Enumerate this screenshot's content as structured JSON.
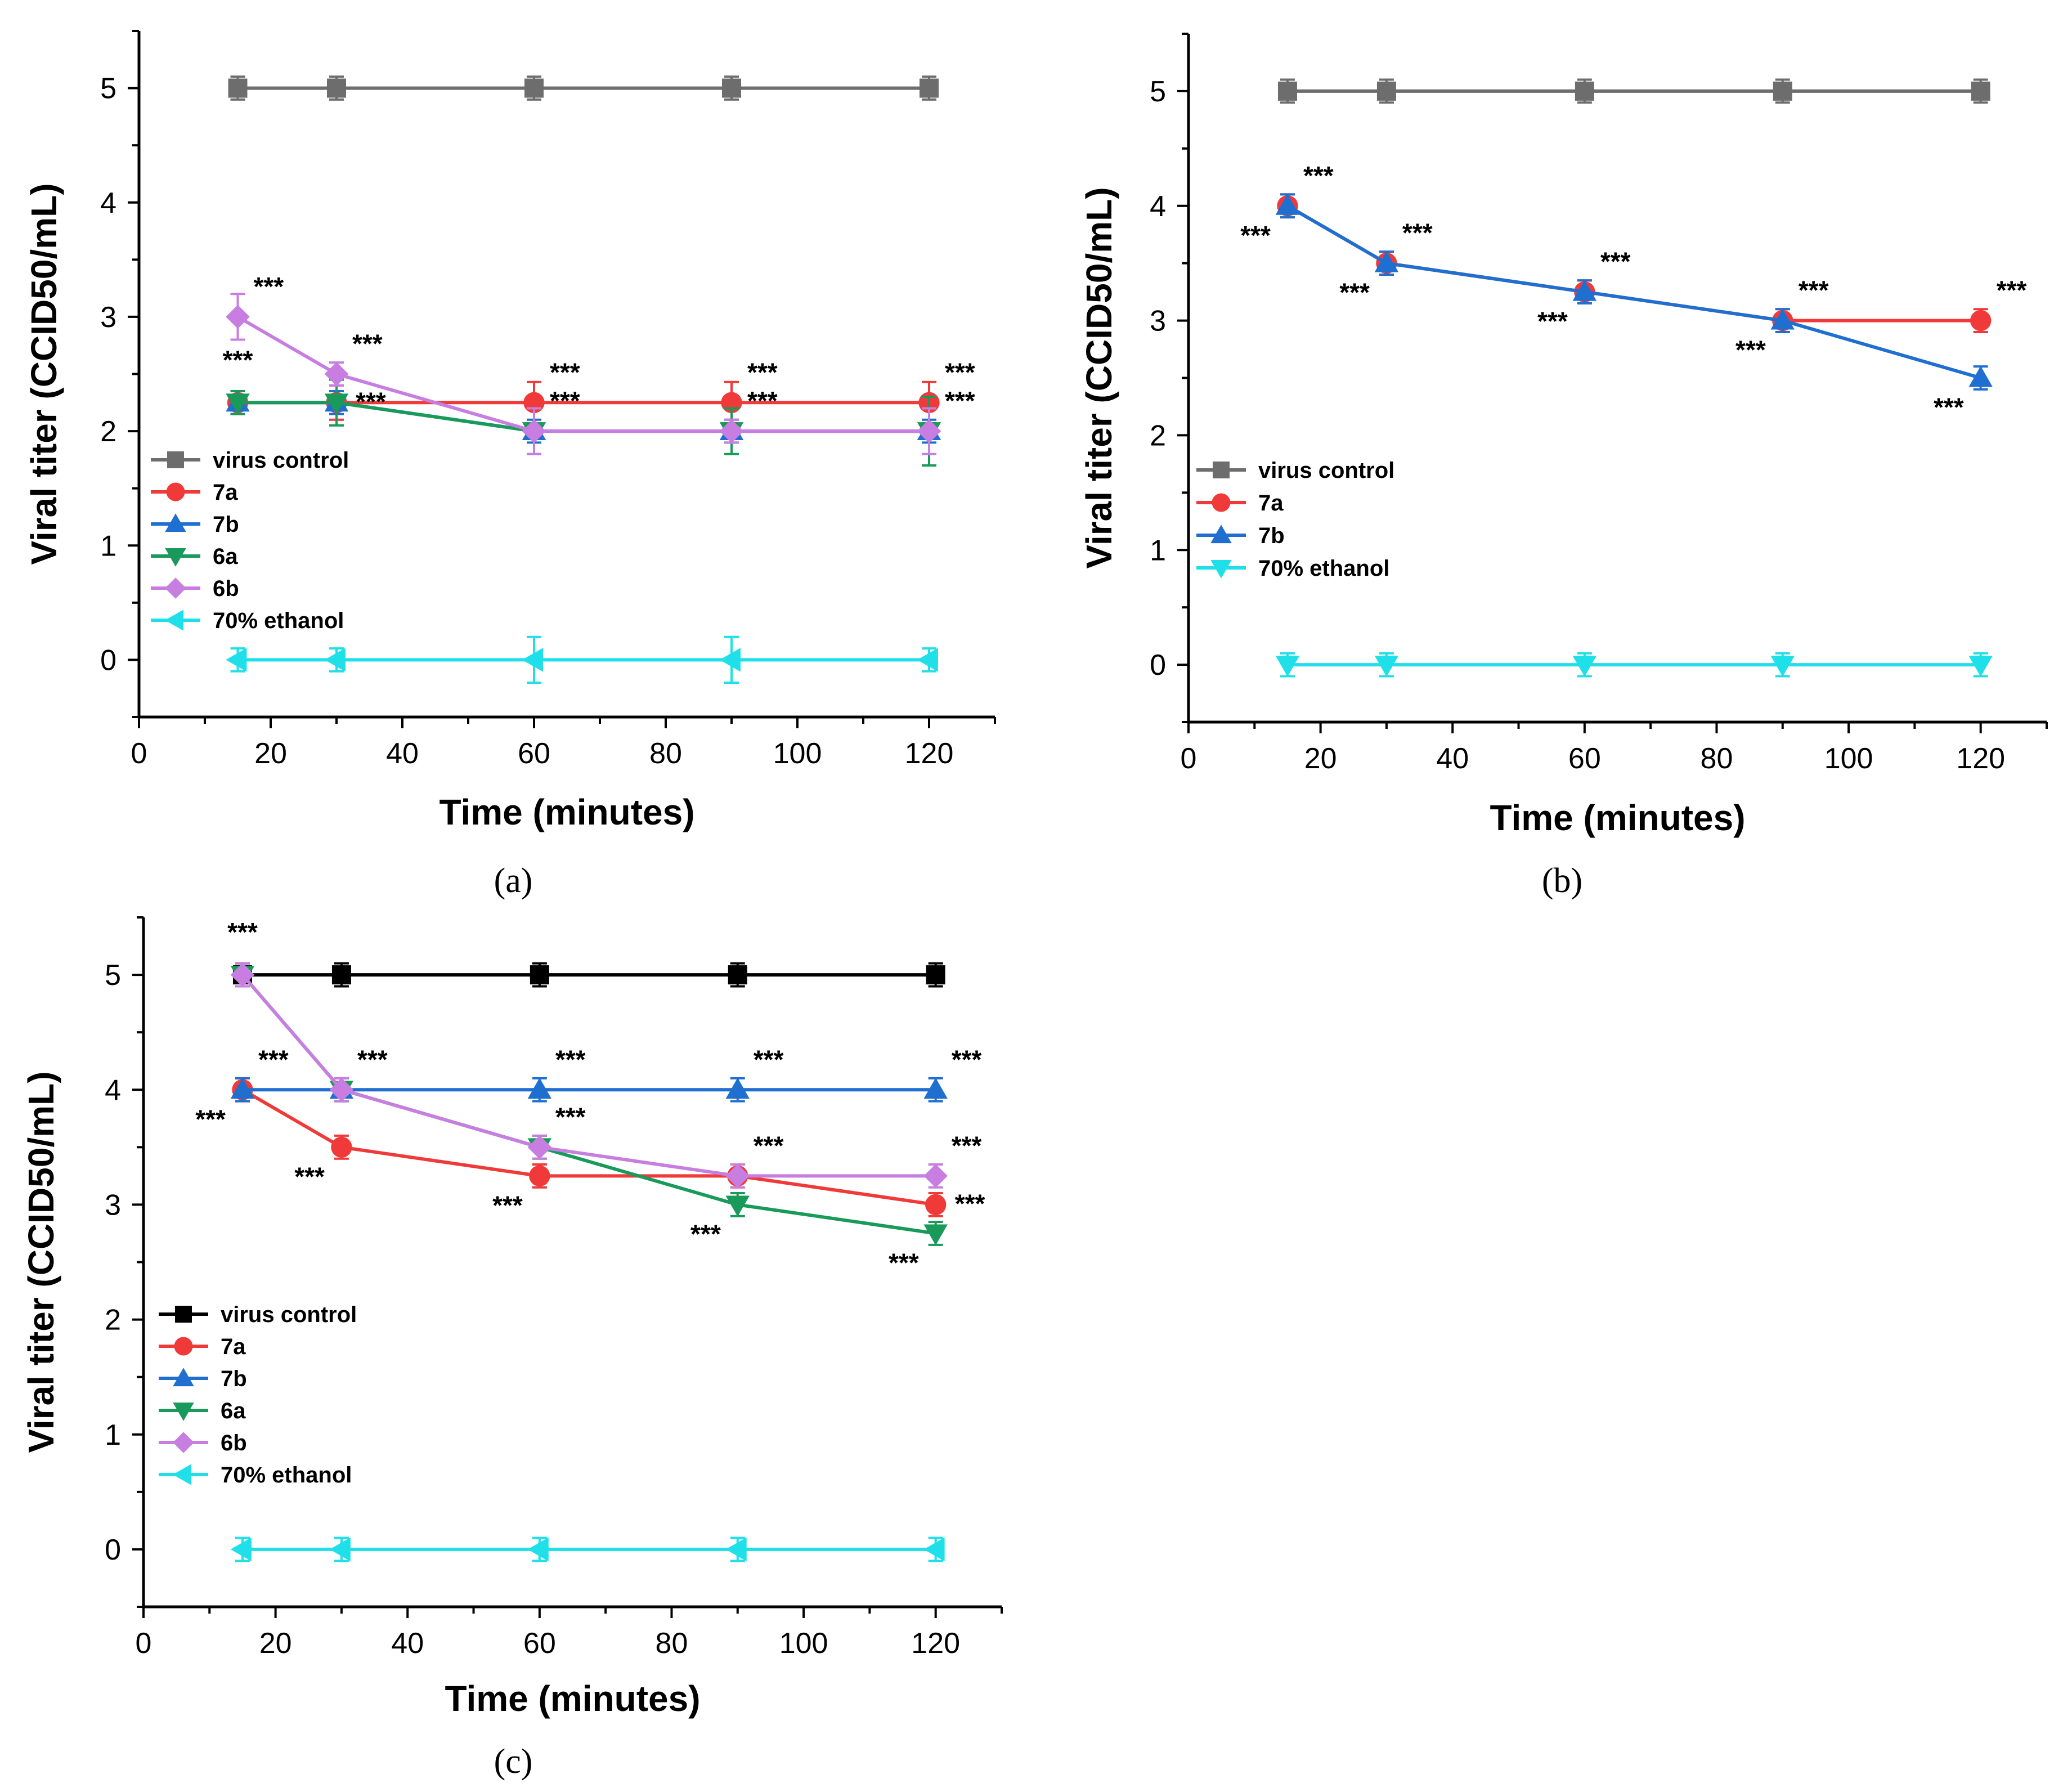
{
  "chart_data": [
    {
      "type": "line",
      "panel": "a",
      "caption": "(a)",
      "xlabel": "Time (minutes)",
      "ylabel": "Viral titer (CCID50/mL)",
      "xlim": [
        0,
        130
      ],
      "ylim": [
        -0.5,
        5.5
      ],
      "xticks": [
        "0",
        "20",
        "40",
        "60",
        "80",
        "100",
        "120"
      ],
      "yticks": [
        "0",
        "1",
        "2",
        "3",
        "4",
        "5"
      ],
      "x": [
        15,
        30,
        60,
        90,
        120
      ],
      "series": [
        {
          "name": "virus control",
          "values": [
            5,
            5,
            5,
            5,
            5
          ],
          "errors": [
            0.1,
            0.1,
            0.1,
            0.1,
            0.1
          ],
          "color": "#6d6d6d",
          "marker": "square"
        },
        {
          "name": "7a",
          "values": [
            2.25,
            2.25,
            2.25,
            2.25,
            2.25
          ],
          "errors": [
            0.1,
            0.15,
            0.18,
            0.18,
            0.18
          ],
          "color": "#f03a3a",
          "marker": "circle"
        },
        {
          "name": "7b",
          "values": [
            2.25,
            2.25,
            2.0,
            2.0,
            2.0
          ],
          "errors": [
            0.1,
            0.1,
            0.1,
            0.1,
            0.1
          ],
          "color": "#1f6fd1",
          "marker": "triangle-up"
        },
        {
          "name": "6a",
          "values": [
            2.25,
            2.25,
            2.0,
            2.0,
            2.0
          ],
          "errors": [
            0.1,
            0.2,
            0.2,
            0.2,
            0.3
          ],
          "color": "#1a9a5a",
          "marker": "triangle-down"
        },
        {
          "name": "6b",
          "values": [
            3.0,
            2.5,
            2.0,
            2.0,
            2.0
          ],
          "errors": [
            0.2,
            0.1,
            0.2,
            0.1,
            0.2
          ],
          "color": "#c77ee0",
          "marker": "diamond"
        },
        {
          "name": "70% ethanol",
          "values": [
            0,
            0,
            0,
            0,
            0
          ],
          "errors": [
            0.1,
            0.1,
            0.2,
            0.2,
            0.1
          ],
          "color": "#1fe0e8",
          "marker": "triangle-left"
        }
      ],
      "annotations": [
        {
          "text": "***",
          "x": 15,
          "y": 2.25,
          "pos": "above"
        },
        {
          "text": "***",
          "x": 15,
          "y": 3.0,
          "pos": "above-right"
        },
        {
          "text": "***",
          "x": 30,
          "y": 2.5,
          "pos": "above-right"
        },
        {
          "text": "***",
          "x": 30,
          "y": 2.25,
          "pos": "right"
        },
        {
          "text": "***",
          "x": 60,
          "y": 2.25,
          "pos": "above-right"
        },
        {
          "text": "***",
          "x": 60,
          "y": 2.0,
          "pos": "above-right"
        },
        {
          "text": "***",
          "x": 90,
          "y": 2.25,
          "pos": "above-right"
        },
        {
          "text": "***",
          "x": 90,
          "y": 2.0,
          "pos": "above-right"
        },
        {
          "text": "***",
          "x": 120,
          "y": 2.25,
          "pos": "above-right"
        },
        {
          "text": "***",
          "x": 120,
          "y": 2.0,
          "pos": "above-right"
        }
      ]
    },
    {
      "type": "line",
      "panel": "b",
      "caption": "(b)",
      "xlabel": "Time (minutes)",
      "ylabel": "Viral titer (CCID50/mL)",
      "xlim": [
        0,
        130
      ],
      "ylim": [
        -0.5,
        5.5
      ],
      "xticks": [
        "0",
        "20",
        "40",
        "60",
        "80",
        "100",
        "120"
      ],
      "yticks": [
        "0",
        "1",
        "2",
        "3",
        "4",
        "5"
      ],
      "x": [
        15,
        30,
        60,
        90,
        120
      ],
      "series": [
        {
          "name": "virus control",
          "values": [
            5,
            5,
            5,
            5,
            5
          ],
          "errors": [
            0.1,
            0.1,
            0.1,
            0.1,
            0.1
          ],
          "color": "#6d6d6d",
          "marker": "square"
        },
        {
          "name": "7a",
          "values": [
            4.0,
            3.5,
            3.25,
            3.0,
            3.0
          ],
          "errors": [
            0.1,
            0.1,
            0.1,
            0.1,
            0.1
          ],
          "color": "#f03a3a",
          "marker": "circle"
        },
        {
          "name": "7b",
          "values": [
            4.0,
            3.5,
            3.25,
            3.0,
            2.5
          ],
          "errors": [
            0.1,
            0.1,
            0.1,
            0.1,
            0.1
          ],
          "color": "#1f6fd1",
          "marker": "triangle-up"
        },
        {
          "name": "70% ethanol",
          "values": [
            0,
            0,
            0,
            0,
            0
          ],
          "errors": [
            0.1,
            0.1,
            0.1,
            0.1,
            0.1
          ],
          "color": "#1fe0e8",
          "marker": "triangle-down"
        }
      ],
      "annotations": [
        {
          "text": "***",
          "x": 15,
          "y": 4.0,
          "pos": "above-right"
        },
        {
          "text": "***",
          "x": 15,
          "y": 4.0,
          "pos": "below-left"
        },
        {
          "text": "***",
          "x": 30,
          "y": 3.5,
          "pos": "above-right"
        },
        {
          "text": "***",
          "x": 30,
          "y": 3.5,
          "pos": "below-left"
        },
        {
          "text": "***",
          "x": 60,
          "y": 3.25,
          "pos": "above-right"
        },
        {
          "text": "***",
          "x": 60,
          "y": 3.25,
          "pos": "below-left"
        },
        {
          "text": "***",
          "x": 90,
          "y": 3.0,
          "pos": "above-right"
        },
        {
          "text": "***",
          "x": 90,
          "y": 3.0,
          "pos": "below-left"
        },
        {
          "text": "***",
          "x": 120,
          "y": 3.0,
          "pos": "above-right"
        },
        {
          "text": "***",
          "x": 120,
          "y": 2.5,
          "pos": "below-left"
        }
      ]
    },
    {
      "type": "line",
      "panel": "c",
      "caption": "(c)",
      "xlabel": "Time (minutes)",
      "ylabel": "Viral titer (CCID50/mL)",
      "xlim": [
        0,
        130
      ],
      "ylim": [
        -0.5,
        5.5
      ],
      "xticks": [
        "0",
        "20",
        "40",
        "60",
        "80",
        "100",
        "120"
      ],
      "yticks": [
        "0",
        "1",
        "2",
        "3",
        "4",
        "5"
      ],
      "x": [
        15,
        30,
        60,
        90,
        120
      ],
      "series": [
        {
          "name": "virus control",
          "values": [
            5,
            5,
            5,
            5,
            5
          ],
          "errors": [
            0.1,
            0.1,
            0.1,
            0.1,
            0.1
          ],
          "color": "#000000",
          "marker": "square"
        },
        {
          "name": "7a",
          "values": [
            4.0,
            3.5,
            3.25,
            3.25,
            3.0
          ],
          "errors": [
            0.1,
            0.1,
            0.1,
            0.1,
            0.1
          ],
          "color": "#f03a3a",
          "marker": "circle"
        },
        {
          "name": "7b",
          "values": [
            4.0,
            4.0,
            4.0,
            4.0,
            4.0
          ],
          "errors": [
            0.1,
            0.1,
            0.1,
            0.1,
            0.1
          ],
          "color": "#1f6fd1",
          "marker": "triangle-up"
        },
        {
          "name": "6a",
          "values": [
            5.0,
            4.0,
            3.5,
            3.0,
            2.75
          ],
          "errors": [
            0.1,
            0.1,
            0.1,
            0.1,
            0.1
          ],
          "color": "#1a9a5a",
          "marker": "triangle-down"
        },
        {
          "name": "6b",
          "values": [
            5.0,
            4.0,
            3.5,
            3.25,
            3.25
          ],
          "errors": [
            0.1,
            0.1,
            0.1,
            0.1,
            0.1
          ],
          "color": "#c77ee0",
          "marker": "diamond"
        },
        {
          "name": "70% ethanol",
          "values": [
            0,
            0,
            0,
            0,
            0
          ],
          "errors": [
            0.1,
            0.1,
            0.1,
            0.1,
            0.1
          ],
          "color": "#1fe0e8",
          "marker": "triangle-left"
        }
      ],
      "annotations": [
        {
          "text": "***",
          "x": 15,
          "y": 5.0,
          "pos": "above"
        },
        {
          "text": "***",
          "x": 15,
          "y": 4.0,
          "pos": "above-right"
        },
        {
          "text": "***",
          "x": 15,
          "y": 4.0,
          "pos": "below-left"
        },
        {
          "text": "***",
          "x": 30,
          "y": 4.0,
          "pos": "above-right"
        },
        {
          "text": "***",
          "x": 30,
          "y": 3.5,
          "pos": "below-left"
        },
        {
          "text": "***",
          "x": 60,
          "y": 4.0,
          "pos": "above-right"
        },
        {
          "text": "***",
          "x": 60,
          "y": 3.5,
          "pos": "above-right"
        },
        {
          "text": "***",
          "x": 60,
          "y": 3.25,
          "pos": "below-left"
        },
        {
          "text": "***",
          "x": 90,
          "y": 4.0,
          "pos": "above-right"
        },
        {
          "text": "***",
          "x": 90,
          "y": 3.25,
          "pos": "above-right"
        },
        {
          "text": "***",
          "x": 90,
          "y": 3.0,
          "pos": "below-left"
        },
        {
          "text": "***",
          "x": 120,
          "y": 4.0,
          "pos": "above-right"
        },
        {
          "text": "***",
          "x": 120,
          "y": 3.25,
          "pos": "above-right"
        },
        {
          "text": "***",
          "x": 120,
          "y": 3.0,
          "pos": "right"
        },
        {
          "text": "***",
          "x": 120,
          "y": 2.75,
          "pos": "below-left"
        }
      ]
    }
  ]
}
